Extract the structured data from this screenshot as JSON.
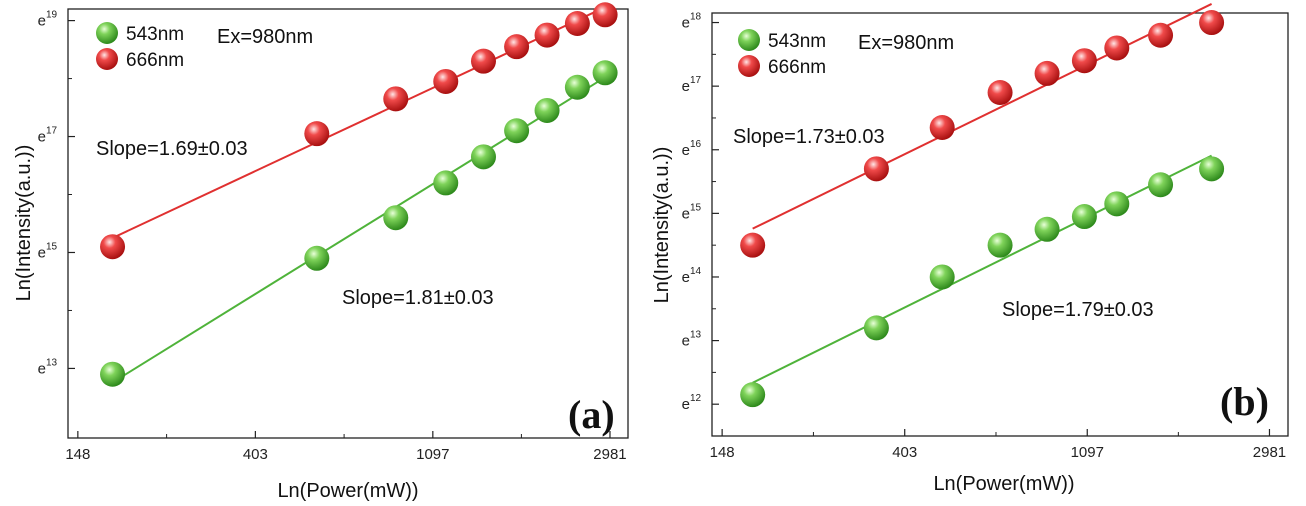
{
  "chart_data": [
    {
      "type": "scatter",
      "panel_label": "(a)",
      "xlabel": "Ln(Power(mW))",
      "ylabel": "Ln(Intensity(a.u.))",
      "x_scale": "log",
      "y_scale": "log",
      "xlim": [
        140,
        3300
      ],
      "ylim": [
        11.8,
        19.2
      ],
      "x_ticks": [
        "148",
        "403",
        "1097",
        "2981"
      ],
      "y_ticks": [
        {
          "base": "e",
          "exp": "13",
          "value": 13
        },
        {
          "base": "e",
          "exp": "15",
          "value": 15
        },
        {
          "base": "e",
          "exp": "17",
          "value": 17
        },
        {
          "base": "e",
          "exp": "19",
          "value": 19
        }
      ],
      "series": [
        {
          "name": "543nm",
          "color": "#4fb33a",
          "x": [
            180,
            570,
            890,
            1180,
            1460,
            1760,
            2090,
            2480,
            2900
          ],
          "y": [
            12.9,
            14.9,
            15.6,
            16.2,
            16.65,
            17.1,
            17.45,
            17.85,
            18.1
          ]
        },
        {
          "name": "666nm",
          "color": "#e03030",
          "x": [
            180,
            570,
            890,
            1180,
            1460,
            1760,
            2090,
            2480,
            2900
          ],
          "y": [
            15.1,
            17.05,
            17.65,
            17.95,
            18.3,
            18.55,
            18.75,
            18.95,
            19.1
          ]
        }
      ],
      "annotations": [
        "Ex=980nm",
        "Slope=1.69±0.03",
        "Slope=1.81±0.03"
      ]
    },
    {
      "type": "scatter",
      "panel_label": "(b)",
      "xlabel": "Ln(Power(mW))",
      "ylabel": "Ln(Intensity(a.u.))",
      "x_scale": "log",
      "y_scale": "log",
      "xlim": [
        140,
        3300
      ],
      "ylim": [
        11.5,
        18.15
      ],
      "x_ticks": [
        "148",
        "403",
        "1097",
        "2981"
      ],
      "y_ticks": [
        {
          "base": "e",
          "exp": "12",
          "value": 12
        },
        {
          "base": "e",
          "exp": "13",
          "value": 13
        },
        {
          "base": "e",
          "exp": "14",
          "value": 14
        },
        {
          "base": "e",
          "exp": "15",
          "value": 15
        },
        {
          "base": "e",
          "exp": "16",
          "value": 16
        },
        {
          "base": "e",
          "exp": "17",
          "value": 17
        },
        {
          "base": "e",
          "exp": "18",
          "value": 18
        }
      ],
      "series": [
        {
          "name": "543nm",
          "color": "#4fb33a",
          "x": [
            175,
            345,
            495,
            680,
            880,
            1080,
            1290,
            1640,
            2170
          ],
          "y": [
            12.15,
            13.2,
            14.0,
            14.5,
            14.75,
            14.95,
            15.15,
            15.45,
            15.7
          ]
        },
        {
          "name": "666nm",
          "color": "#e03030",
          "x": [
            175,
            345,
            495,
            680,
            880,
            1080,
            1290,
            1640,
            2170
          ],
          "y": [
            14.5,
            15.7,
            16.35,
            16.9,
            17.2,
            17.4,
            17.6,
            17.8,
            18.0
          ]
        }
      ],
      "annotations": [
        "Ex=980nm",
        "Slope=1.73±0.03",
        "Slope=1.79±0.03"
      ]
    }
  ]
}
